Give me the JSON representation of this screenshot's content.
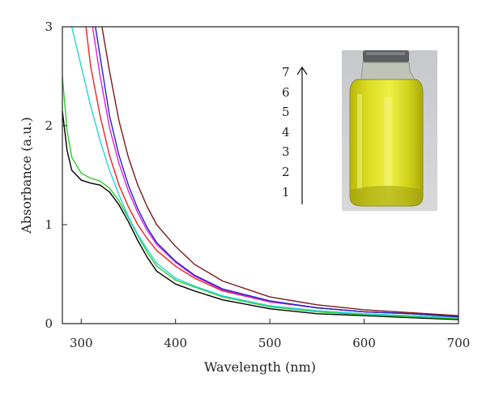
{
  "chart_data": {
    "type": "line",
    "title": "",
    "xlabel": "Wavelength (nm)",
    "ylabel": "Absorbance (a.u.)",
    "xlim": [
      280,
      700
    ],
    "ylim": [
      0,
      3
    ],
    "xticks": [
      300,
      400,
      500,
      600,
      700
    ],
    "yticks": [
      0,
      1,
      2,
      3
    ],
    "grid": false,
    "legend": "none",
    "annotations": {
      "sample_numbers": [
        "7",
        "6",
        "5",
        "4",
        "3",
        "2",
        "1"
      ],
      "arrow": "increasing 1 to 7",
      "inset": "photo of yellow solution in glass vial"
    },
    "series": [
      {
        "color": "#000000",
        "points": [
          [
            280,
            2.15
          ],
          [
            285,
            1.75
          ],
          [
            290,
            1.55
          ],
          [
            300,
            1.45
          ],
          [
            310,
            1.42
          ],
          [
            320,
            1.4
          ],
          [
            330,
            1.33
          ],
          [
            340,
            1.2
          ],
          [
            350,
            1.03
          ],
          [
            360,
            0.84
          ],
          [
            370,
            0.67
          ],
          [
            380,
            0.53
          ],
          [
            400,
            0.4
          ],
          [
            420,
            0.33
          ],
          [
            450,
            0.24
          ],
          [
            500,
            0.15
          ],
          [
            550,
            0.1
          ],
          [
            600,
            0.08
          ],
          [
            650,
            0.06
          ],
          [
            700,
            0.04
          ]
        ]
      },
      {
        "color": "#2ecc2e",
        "points": [
          [
            280,
            2.5
          ],
          [
            285,
            1.95
          ],
          [
            290,
            1.68
          ],
          [
            300,
            1.52
          ],
          [
            310,
            1.47
          ],
          [
            320,
            1.44
          ],
          [
            330,
            1.37
          ],
          [
            340,
            1.24
          ],
          [
            350,
            1.07
          ],
          [
            360,
            0.89
          ],
          [
            370,
            0.72
          ],
          [
            380,
            0.58
          ],
          [
            400,
            0.44
          ],
          [
            420,
            0.37
          ],
          [
            450,
            0.27
          ],
          [
            500,
            0.17
          ],
          [
            550,
            0.12
          ],
          [
            600,
            0.09
          ],
          [
            650,
            0.07
          ],
          [
            700,
            0.05
          ]
        ]
      },
      {
        "color": "#22d3e0",
        "points": [
          [
            290,
            3.0
          ],
          [
            300,
            2.6
          ],
          [
            310,
            2.2
          ],
          [
            320,
            1.85
          ],
          [
            330,
            1.55
          ],
          [
            340,
            1.3
          ],
          [
            350,
            1.08
          ],
          [
            360,
            0.9
          ],
          [
            370,
            0.75
          ],
          [
            380,
            0.61
          ],
          [
            400,
            0.46
          ],
          [
            420,
            0.38
          ],
          [
            450,
            0.28
          ],
          [
            500,
            0.18
          ],
          [
            550,
            0.13
          ],
          [
            600,
            0.1
          ],
          [
            650,
            0.08
          ],
          [
            700,
            0.06
          ]
        ]
      },
      {
        "color": "#ee2222",
        "points": [
          [
            305,
            3.0
          ],
          [
            310,
            2.6
          ],
          [
            320,
            2.1
          ],
          [
            330,
            1.7
          ],
          [
            340,
            1.4
          ],
          [
            350,
            1.18
          ],
          [
            360,
            1.0
          ],
          [
            370,
            0.86
          ],
          [
            380,
            0.74
          ],
          [
            400,
            0.58
          ],
          [
            420,
            0.46
          ],
          [
            450,
            0.33
          ],
          [
            500,
            0.22
          ],
          [
            550,
            0.16
          ],
          [
            600,
            0.12
          ],
          [
            650,
            0.1
          ],
          [
            700,
            0.07
          ]
        ]
      },
      {
        "color": "#e020e0",
        "points": [
          [
            312,
            3.0
          ],
          [
            320,
            2.5
          ],
          [
            330,
            1.98
          ],
          [
            340,
            1.62
          ],
          [
            350,
            1.34
          ],
          [
            360,
            1.12
          ],
          [
            370,
            0.94
          ],
          [
            380,
            0.8
          ],
          [
            400,
            0.62
          ],
          [
            420,
            0.48
          ],
          [
            450,
            0.34
          ],
          [
            500,
            0.22
          ],
          [
            550,
            0.16
          ],
          [
            600,
            0.12
          ],
          [
            650,
            0.1
          ],
          [
            700,
            0.07
          ]
        ]
      },
      {
        "color": "#2222cc",
        "points": [
          [
            315,
            3.0
          ],
          [
            320,
            2.7
          ],
          [
            330,
            2.1
          ],
          [
            340,
            1.7
          ],
          [
            350,
            1.4
          ],
          [
            360,
            1.16
          ],
          [
            370,
            0.97
          ],
          [
            380,
            0.82
          ],
          [
            400,
            0.63
          ],
          [
            420,
            0.49
          ],
          [
            450,
            0.35
          ],
          [
            500,
            0.23
          ],
          [
            550,
            0.16
          ],
          [
            600,
            0.12
          ],
          [
            650,
            0.1
          ],
          [
            700,
            0.07
          ]
        ]
      },
      {
        "color": "#7a1a1a",
        "points": [
          [
            322,
            3.0
          ],
          [
            330,
            2.55
          ],
          [
            340,
            2.05
          ],
          [
            350,
            1.68
          ],
          [
            360,
            1.4
          ],
          [
            370,
            1.18
          ],
          [
            380,
            1.0
          ],
          [
            400,
            0.78
          ],
          [
            420,
            0.6
          ],
          [
            450,
            0.43
          ],
          [
            500,
            0.27
          ],
          [
            550,
            0.19
          ],
          [
            600,
            0.14
          ],
          [
            650,
            0.11
          ],
          [
            700,
            0.08
          ]
        ]
      }
    ]
  }
}
